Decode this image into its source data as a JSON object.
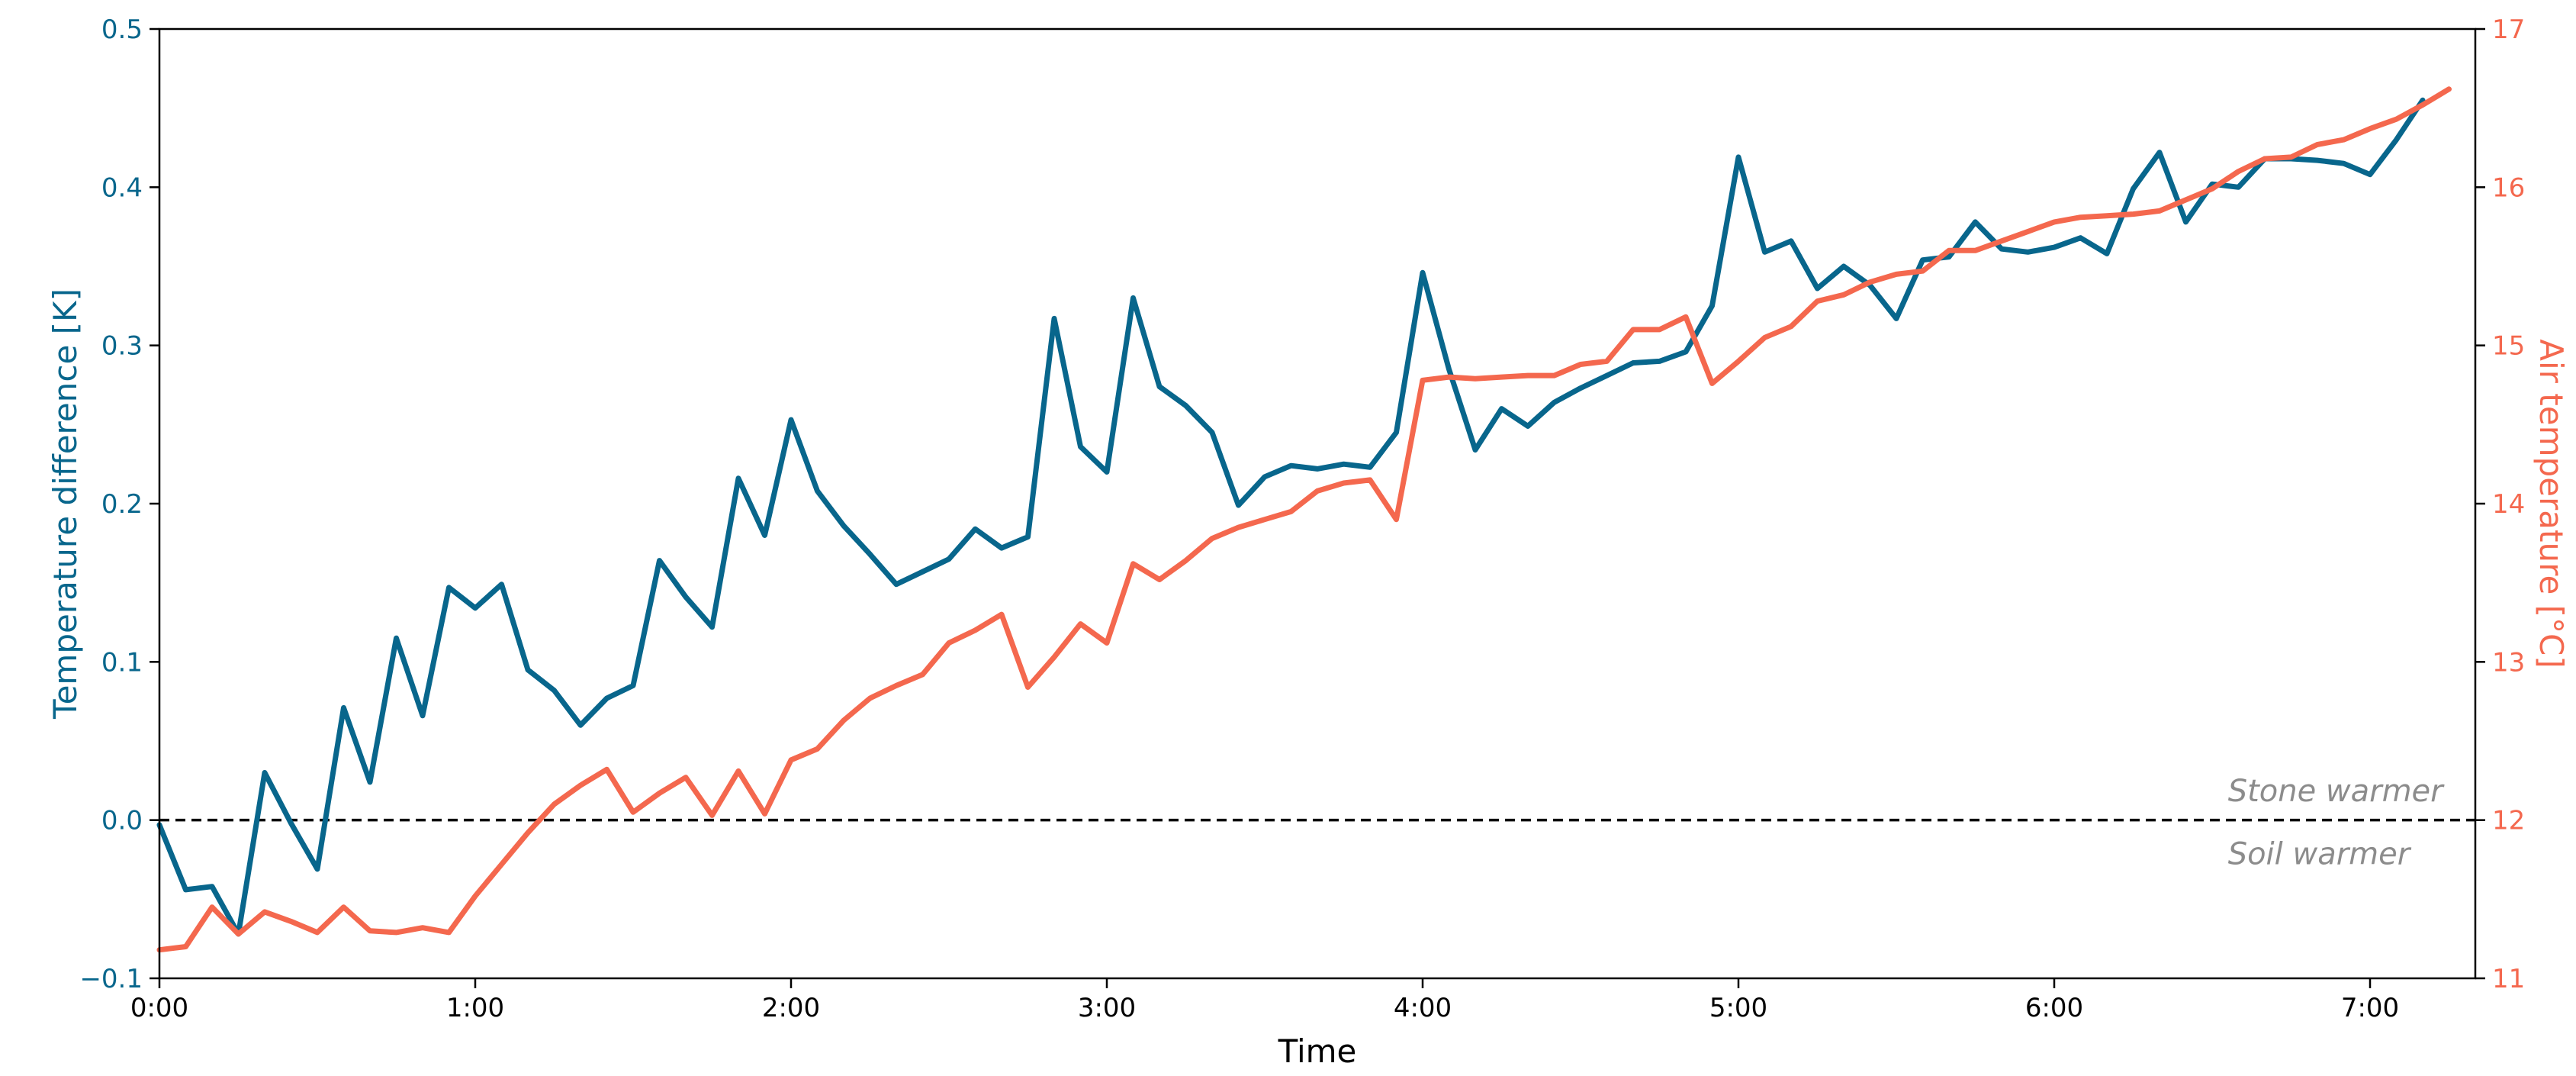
{
  "chart_data": {
    "type": "line",
    "title": "",
    "xlabel": "Time",
    "ylabel_left": "Temperature difference [K]",
    "ylabel_right": "Air temperature [°C]",
    "x_unit": "minutes",
    "xlim": [
      0,
      440
    ],
    "ylim_left": [
      -0.1,
      0.5
    ],
    "ylim_right": [
      11,
      17
    ],
    "x_ticks": [
      {
        "value": 0,
        "label": "0:00"
      },
      {
        "value": 60,
        "label": "1:00"
      },
      {
        "value": 120,
        "label": "2:00"
      },
      {
        "value": 180,
        "label": "3:00"
      },
      {
        "value": 240,
        "label": "4:00"
      },
      {
        "value": 300,
        "label": "5:00"
      },
      {
        "value": 360,
        "label": "6:00"
      },
      {
        "value": 420,
        "label": "7:00"
      }
    ],
    "y_ticks_left": [
      {
        "value": -0.1,
        "label": "−0.1"
      },
      {
        "value": 0.0,
        "label": "0.0"
      },
      {
        "value": 0.1,
        "label": "0.1"
      },
      {
        "value": 0.2,
        "label": "0.2"
      },
      {
        "value": 0.3,
        "label": "0.3"
      },
      {
        "value": 0.4,
        "label": "0.4"
      },
      {
        "value": 0.5,
        "label": "0.5"
      }
    ],
    "y_ticks_right": [
      {
        "value": 11,
        "label": "11"
      },
      {
        "value": 12,
        "label": "12"
      },
      {
        "value": 13,
        "label": "13"
      },
      {
        "value": 14,
        "label": "14"
      },
      {
        "value": 15,
        "label": "15"
      },
      {
        "value": 16,
        "label": "16"
      },
      {
        "value": 17,
        "label": "17"
      }
    ],
    "colors": {
      "left_axis": "#08668c",
      "right_axis": "#f4684e",
      "zero_line": "#000000",
      "annotation": "#8c8c8c"
    },
    "reference_line": {
      "axis": "left",
      "value": 0.0,
      "style": "dashed"
    },
    "annotations": [
      {
        "text": "Stone warmer",
        "axis": "left",
        "x": 393,
        "y": 0.012
      },
      {
        "text": "Soil warmer",
        "axis": "left",
        "x": 393,
        "y": -0.028
      }
    ],
    "grid": false,
    "series": [
      {
        "axis": "left",
        "color": "#08668c",
        "x": [
          0,
          5,
          10,
          15,
          20,
          25,
          30,
          35,
          40,
          45,
          50,
          55,
          60,
          65,
          70,
          75,
          80,
          85,
          90,
          95,
          100,
          105,
          110,
          115,
          120,
          125,
          130,
          135,
          140,
          145,
          150,
          155,
          160,
          165,
          170,
          175,
          180,
          185,
          190,
          195,
          200,
          205,
          210,
          215,
          220,
          225,
          230,
          235,
          240,
          245,
          250,
          255,
          260,
          265,
          270,
          275,
          280,
          285,
          290,
          295,
          300,
          305,
          310,
          315,
          320,
          325,
          330,
          335,
          340,
          345,
          350,
          355,
          360,
          365,
          370,
          375,
          380,
          385,
          390,
          395,
          400,
          405,
          410,
          415,
          420,
          425,
          430
        ],
        "y": [
          -0.003,
          -0.044,
          -0.042,
          -0.072,
          0.03,
          -0.002,
          -0.031,
          0.071,
          0.024,
          0.115,
          0.066,
          0.147,
          0.134,
          0.149,
          0.095,
          0.082,
          0.06,
          0.077,
          0.085,
          0.164,
          0.141,
          0.122,
          0.216,
          0.18,
          0.253,
          0.208,
          0.186,
          0.168,
          0.149,
          0.157,
          0.165,
          0.184,
          0.172,
          0.179,
          0.317,
          0.236,
          0.22,
          0.33,
          0.274,
          0.262,
          0.245,
          0.199,
          0.217,
          0.224,
          0.222,
          0.225,
          0.223,
          0.245,
          0.346,
          0.285,
          0.234,
          0.26,
          0.249,
          0.264,
          0.273,
          0.281,
          0.289,
          0.29,
          0.296,
          0.325,
          0.419,
          0.359,
          0.366,
          0.336,
          0.35,
          0.338,
          0.317,
          0.354,
          0.356,
          0.378,
          0.361,
          0.359,
          0.362,
          0.368,
          0.358,
          0.399,
          0.422,
          0.378,
          0.402,
          0.4,
          0.418,
          0.418,
          0.417,
          0.415,
          0.408,
          0.43,
          0.455
        ]
      },
      {
        "axis": "right",
        "color": "#f4684e",
        "x": [
          0,
          5,
          10,
          15,
          20,
          25,
          30,
          35,
          40,
          45,
          50,
          55,
          60,
          65,
          70,
          75,
          80,
          85,
          90,
          95,
          100,
          105,
          110,
          115,
          120,
          125,
          130,
          135,
          140,
          145,
          150,
          155,
          160,
          165,
          170,
          175,
          180,
          185,
          190,
          195,
          200,
          205,
          210,
          215,
          220,
          225,
          230,
          235,
          240,
          245,
          250,
          255,
          260,
          265,
          270,
          275,
          280,
          285,
          290,
          295,
          300,
          305,
          310,
          315,
          320,
          325,
          330,
          335,
          340,
          345,
          350,
          355,
          360,
          365,
          370,
          375,
          380,
          385,
          390,
          395,
          400,
          405,
          410,
          415,
          420,
          425,
          430,
          435
        ],
        "y": [
          11.18,
          11.2,
          11.45,
          11.28,
          11.42,
          11.36,
          11.29,
          11.45,
          11.3,
          11.29,
          11.32,
          11.29,
          11.52,
          11.72,
          11.92,
          12.1,
          12.22,
          12.32,
          12.05,
          12.17,
          12.27,
          12.03,
          12.31,
          12.04,
          12.38,
          12.45,
          12.63,
          12.77,
          12.85,
          12.92,
          13.12,
          13.2,
          13.3,
          12.84,
          13.03,
          13.24,
          13.12,
          13.62,
          13.52,
          13.64,
          13.78,
          13.85,
          13.9,
          13.95,
          14.08,
          14.13,
          14.15,
          13.9,
          14.78,
          14.8,
          14.79,
          14.8,
          14.81,
          14.81,
          14.88,
          14.9,
          15.1,
          15.1,
          15.18,
          14.76,
          14.9,
          15.05,
          15.12,
          15.28,
          15.32,
          15.4,
          15.45,
          15.47,
          15.6,
          15.6,
          15.66,
          15.72,
          15.78,
          15.81,
          15.82,
          15.83,
          15.85,
          15.92,
          15.99,
          16.1,
          16.18,
          16.19,
          16.27,
          16.3,
          16.37,
          16.43,
          16.52,
          16.62
        ]
      }
    ]
  }
}
